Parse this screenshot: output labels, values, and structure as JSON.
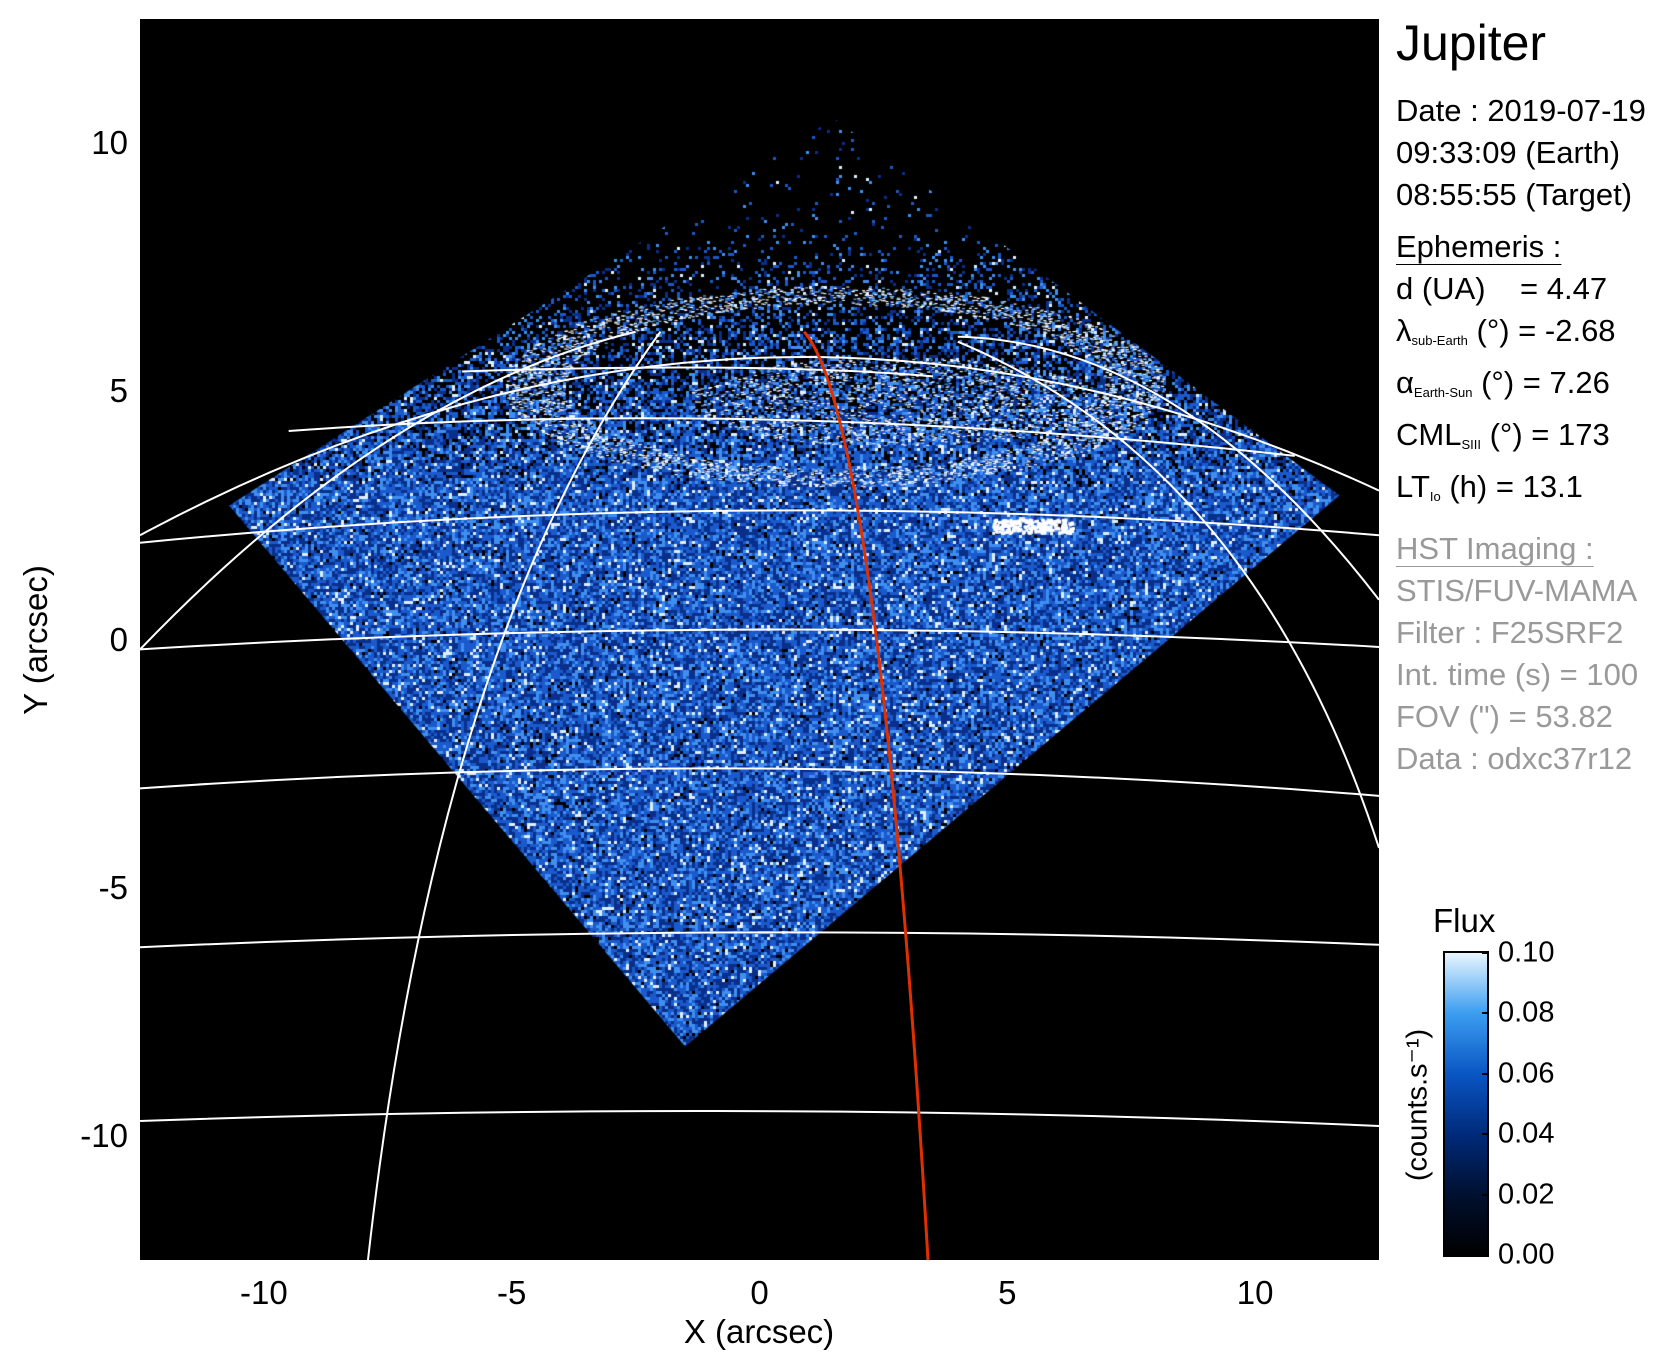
{
  "chart_data": {
    "type": "heatmap",
    "title": "Jupiter",
    "xlabel": "X (arcsec)",
    "ylabel": "Y (arcsec)",
    "xlim": [
      -12.5,
      12.5
    ],
    "ylim": [
      -12.5,
      12.5
    ],
    "xticks": [
      "-10",
      "-5",
      "0",
      "5",
      "10"
    ],
    "yticks": [
      "10",
      "5",
      "0",
      "-5",
      "-10"
    ],
    "xtick_values": [
      -10,
      -5,
      0,
      5,
      10
    ],
    "ytick_values": [
      10,
      5,
      0,
      -5,
      -10
    ],
    "colorbar": {
      "title": "Flux",
      "unit": "(counts.s⁻¹)",
      "range": [
        0.0,
        0.1
      ],
      "ticks": [
        "0.10",
        "0.08",
        "0.06",
        "0.04",
        "0.02",
        "0.00"
      ],
      "tick_values": [
        0.1,
        0.08,
        0.06,
        0.04,
        0.02,
        0.0
      ],
      "colors": [
        "#000000",
        "#00102f",
        "#002a7a",
        "#0a56c4",
        "#3b9df0",
        "#e8f6ff"
      ]
    },
    "grid_color": "#ffffff",
    "overlay_line_color": "#e03000"
  },
  "info": {
    "date": "Date : 2019-07-19",
    "earth_time": "09:33:09 (Earth)",
    "target_time": "08:55:55 (Target)",
    "ephemeris_header": "Ephemeris :",
    "d": {
      "label": "d (UA)",
      "value": "= 4.47"
    },
    "lambda": {
      "symbol": "λ",
      "sub": "sub-Earth",
      "unit": "(°)",
      "value": "= -2.68"
    },
    "alpha": {
      "symbol": "α",
      "sub": "Earth-Sun",
      "unit": "(°)",
      "value": "= 7.26"
    },
    "cml": {
      "symbol": "CML",
      "sub": "SIII",
      "unit": "(°)",
      "value": "= 173"
    },
    "lt": {
      "symbol": "LT",
      "sub": "Io",
      "unit": "(h)",
      "value": "= 13.1"
    },
    "hst_header": "HST Imaging :",
    "instrument": "STIS/FUV-MAMA",
    "filter": "Filter : F25SRF2",
    "int_time": "Int. time (s) = 100",
    "fov": "FOV (\") = 53.82",
    "data": "Data : odxc37r12"
  }
}
